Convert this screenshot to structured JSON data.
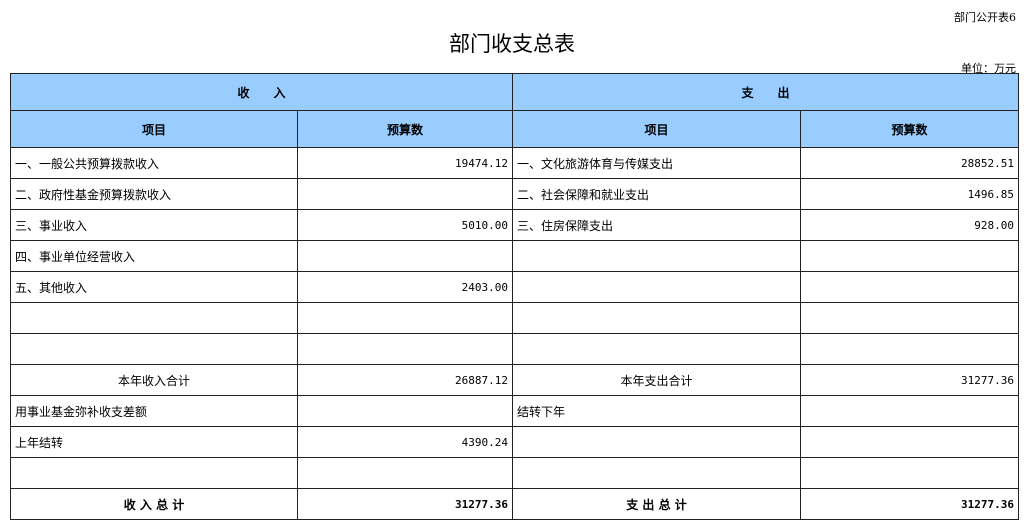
{
  "table_tag": "部门公开表6",
  "title": "部门收支总表",
  "unit": "单位：万元",
  "header": {
    "income": "收　　入",
    "expense": "支　　出",
    "item": "项目",
    "budget": "预算数"
  },
  "colors": {
    "header_bg": "#99ccff"
  },
  "rows": [
    {
      "in_item": "一、一般公共预算拨款收入",
      "in_val": "19474.12",
      "out_item": "一、文化旅游体育与传媒支出",
      "out_val": "28852.51"
    },
    {
      "in_item": "二、政府性基金预算拨款收入",
      "in_val": "",
      "out_item": "二、社会保障和就业支出",
      "out_val": "1496.85"
    },
    {
      "in_item": "三、事业收入",
      "in_val": "5010.00",
      "out_item": "三、住房保障支出",
      "out_val": "928.00"
    },
    {
      "in_item": "四、事业单位经营收入",
      "in_val": "",
      "out_item": "",
      "out_val": ""
    },
    {
      "in_item": "五、其他收入",
      "in_val": "2403.00",
      "out_item": "",
      "out_val": ""
    },
    {
      "in_item": "",
      "in_val": "",
      "out_item": "",
      "out_val": ""
    },
    {
      "in_item": "",
      "in_val": "",
      "out_item": "",
      "out_val": ""
    }
  ],
  "subtotal": {
    "in_item": "本年收入合计",
    "in_val": "26887.12",
    "out_item": "本年支出合计",
    "out_val": "31277.36"
  },
  "extra_rows": [
    {
      "in_item": "用事业基金弥补收支差额",
      "in_val": "",
      "out_item": "结转下年",
      "out_val": ""
    },
    {
      "in_item": "上年结转",
      "in_val": "4390.24",
      "out_item": "",
      "out_val": ""
    },
    {
      "in_item": "",
      "in_val": "",
      "out_item": "",
      "out_val": ""
    }
  ],
  "total": {
    "in_item": "收 入 总 计",
    "in_val": "31277.36",
    "out_item": "支 出 总 计",
    "out_val": "31277.36"
  }
}
